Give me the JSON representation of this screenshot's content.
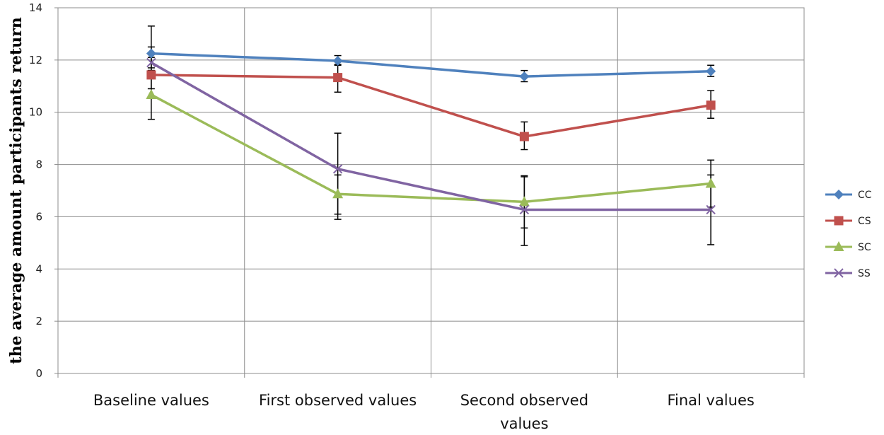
{
  "chart_data": {
    "type": "line",
    "title": "",
    "xlabel": "",
    "ylabel": "the average amount participants  return",
    "categories": [
      "Baseline values",
      "First observed values",
      "Second observed values",
      "Final values"
    ],
    "ylim": [
      0,
      14
    ],
    "yticks": [
      "0",
      "2",
      "4",
      "6",
      "8",
      "10",
      "12",
      "14"
    ],
    "grid": true,
    "legend_position": "right",
    "series": [
      {
        "name": "CC",
        "color": "#4F81BD",
        "marker": "diamond",
        "values": [
          12.25,
          11.97,
          11.37,
          11.57
        ],
        "error_low": [
          11.6,
          11.8,
          11.17,
          11.37
        ],
        "error_high": [
          13.3,
          12.17,
          11.6,
          11.8
        ]
      },
      {
        "name": "CS",
        "color": "#C0504D",
        "marker": "square",
        "values": [
          11.43,
          11.33,
          9.07,
          10.27
        ],
        "error_low": [
          10.9,
          10.77,
          8.57,
          9.77
        ],
        "error_high": [
          12.5,
          11.83,
          9.63,
          10.83
        ]
      },
      {
        "name": "SC",
        "color": "#9BBB59",
        "marker": "triangle",
        "values": [
          10.67,
          6.87,
          6.57,
          7.27
        ],
        "error_low": [
          9.73,
          6.1,
          5.57,
          6.37
        ],
        "error_high": [
          11.6,
          7.6,
          7.57,
          8.17
        ]
      },
      {
        "name": "SS",
        "color": "#8064A2",
        "marker": "x",
        "values": [
          11.9,
          7.83,
          6.27,
          6.27
        ],
        "error_low": [
          11.7,
          5.9,
          4.9,
          4.93
        ],
        "error_high": [
          12.1,
          9.2,
          7.53,
          7.6
        ]
      }
    ]
  }
}
